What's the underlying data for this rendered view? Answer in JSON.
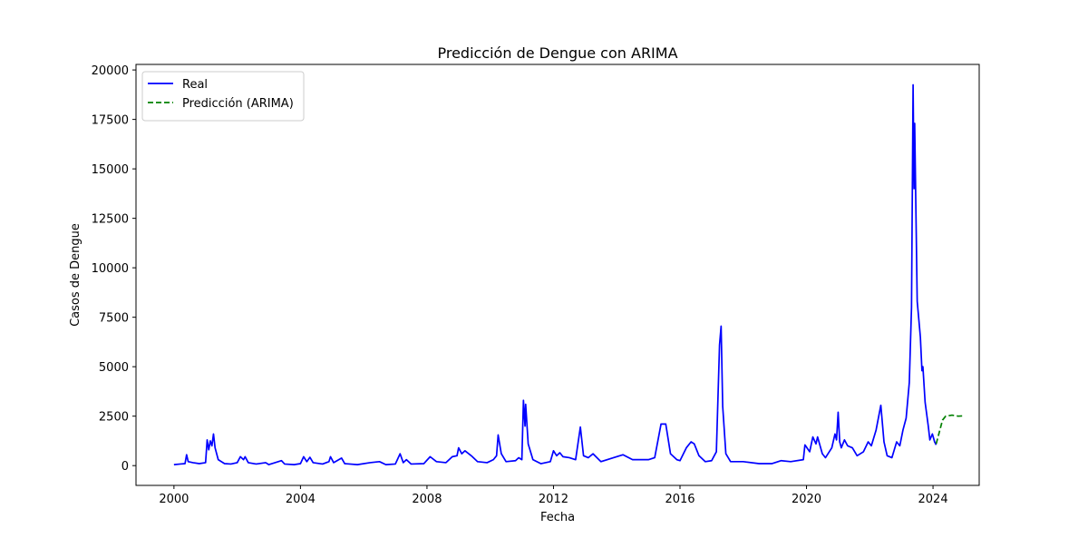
{
  "chart_data": {
    "type": "line",
    "title": "Predicción de Dengue con ARIMA",
    "xlabel": "Fecha",
    "ylabel": "Casos de Dengue",
    "xlim": [
      1998.8,
      2025.46
    ],
    "xticks": [
      2000,
      2004,
      2008,
      2012,
      2016,
      2020,
      2024
    ],
    "ylim": [
      -1000,
      20280
    ],
    "yticks": [
      0,
      2500,
      5000,
      7500,
      10000,
      12500,
      15000,
      17500,
      20000
    ],
    "legend": "upper left",
    "grid": false,
    "series": [
      {
        "name": "Real",
        "color": "#0000ff",
        "dash": "solid",
        "x": [
          2000.0,
          2000.2,
          2000.35,
          2000.4,
          2000.45,
          2000.6,
          2000.8,
          2001.0,
          2001.05,
          2001.1,
          2001.15,
          2001.2,
          2001.25,
          2001.3,
          2001.4,
          2001.6,
          2001.8,
          2002.0,
          2002.1,
          2002.2,
          2002.25,
          2002.35,
          2002.6,
          2002.9,
          2003.0,
          2003.4,
          2003.5,
          2003.8,
          2004.0,
          2004.1,
          2004.2,
          2004.3,
          2004.4,
          2004.7,
          2004.9,
          2004.95,
          2005.05,
          2005.3,
          2005.4,
          2005.8,
          2006.2,
          2006.5,
          2006.7,
          2007.0,
          2007.15,
          2007.25,
          2007.35,
          2007.5,
          2007.9,
          2008.1,
          2008.3,
          2008.6,
          2008.8,
          2008.95,
          2009.0,
          2009.1,
          2009.2,
          2009.4,
          2009.6,
          2009.9,
          2010.1,
          2010.2,
          2010.25,
          2010.35,
          2010.5,
          2010.8,
          2010.9,
          2011.0,
          2011.05,
          2011.1,
          2011.12,
          2011.2,
          2011.35,
          2011.6,
          2011.9,
          2012.0,
          2012.1,
          2012.2,
          2012.3,
          2012.5,
          2012.7,
          2012.85,
          2012.95,
          2013.1,
          2013.25,
          2013.5,
          2013.9,
          2014.2,
          2014.5,
          2014.8,
          2015.0,
          2015.2,
          2015.4,
          2015.55,
          2015.7,
          2015.9,
          2016.0,
          2016.2,
          2016.35,
          2016.45,
          2016.6,
          2016.8,
          2017.0,
          2017.15,
          2017.25,
          2017.3,
          2017.35,
          2017.45,
          2017.6,
          2018.0,
          2018.5,
          2018.9,
          2019.2,
          2019.5,
          2019.9,
          2019.95,
          2020.1,
          2020.2,
          2020.3,
          2020.35,
          2020.5,
          2020.6,
          2020.8,
          2020.9,
          2020.95,
          2021.0,
          2021.05,
          2021.1,
          2021.2,
          2021.3,
          2021.45,
          2021.6,
          2021.8,
          2021.95,
          2022.05,
          2022.2,
          2022.35,
          2022.45,
          2022.55,
          2022.7,
          2022.85,
          2022.95,
          2023.05,
          2023.15,
          2023.25,
          2023.32,
          2023.37,
          2023.4,
          2023.42,
          2023.5,
          2023.6,
          2023.65,
          2023.68,
          2023.75,
          2023.85,
          2023.9,
          2023.98,
          2024.05,
          2024.1
        ],
        "values": [
          50,
          80,
          100,
          550,
          200,
          150,
          100,
          150,
          1300,
          800,
          1250,
          1000,
          1600,
          900,
          300,
          100,
          80,
          150,
          450,
          300,
          450,
          150,
          80,
          150,
          50,
          250,
          80,
          50,
          100,
          450,
          200,
          420,
          150,
          80,
          200,
          450,
          150,
          380,
          100,
          50,
          150,
          200,
          50,
          80,
          600,
          150,
          300,
          80,
          100,
          450,
          200,
          150,
          450,
          500,
          900,
          600,
          750,
          500,
          200,
          150,
          300,
          500,
          1550,
          600,
          200,
          250,
          400,
          300,
          3300,
          2000,
          3100,
          1100,
          300,
          100,
          200,
          750,
          500,
          650,
          450,
          400,
          300,
          1950,
          500,
          400,
          600,
          200,
          400,
          550,
          300,
          300,
          300,
          400,
          2100,
          2100,
          600,
          300,
          250,
          900,
          1200,
          1100,
          500,
          200,
          250,
          700,
          6100,
          7050,
          3000,
          600,
          200,
          200,
          100,
          100,
          250,
          200,
          300,
          1050,
          700,
          1450,
          1100,
          1450,
          600,
          400,
          900,
          1600,
          1300,
          2700,
          1200,
          900,
          1300,
          1000,
          900,
          500,
          700,
          1200,
          1000,
          1800,
          3050,
          1200,
          500,
          400,
          1200,
          1000,
          1800,
          2400,
          4200,
          8000,
          19250,
          14000,
          17300,
          8300,
          6500,
          4800,
          5000,
          3200,
          2000,
          1300,
          1600,
          1200,
          1050
        ]
      },
      {
        "name": "Predicción (ARIMA)",
        "color": "#008000",
        "dash": "dashed",
        "x": [
          2024.1,
          2024.2,
          2024.3,
          2024.4,
          2024.6,
          2024.8,
          2025.0
        ],
        "values": [
          1100,
          1700,
          2300,
          2500,
          2550,
          2500,
          2520
        ]
      }
    ]
  }
}
